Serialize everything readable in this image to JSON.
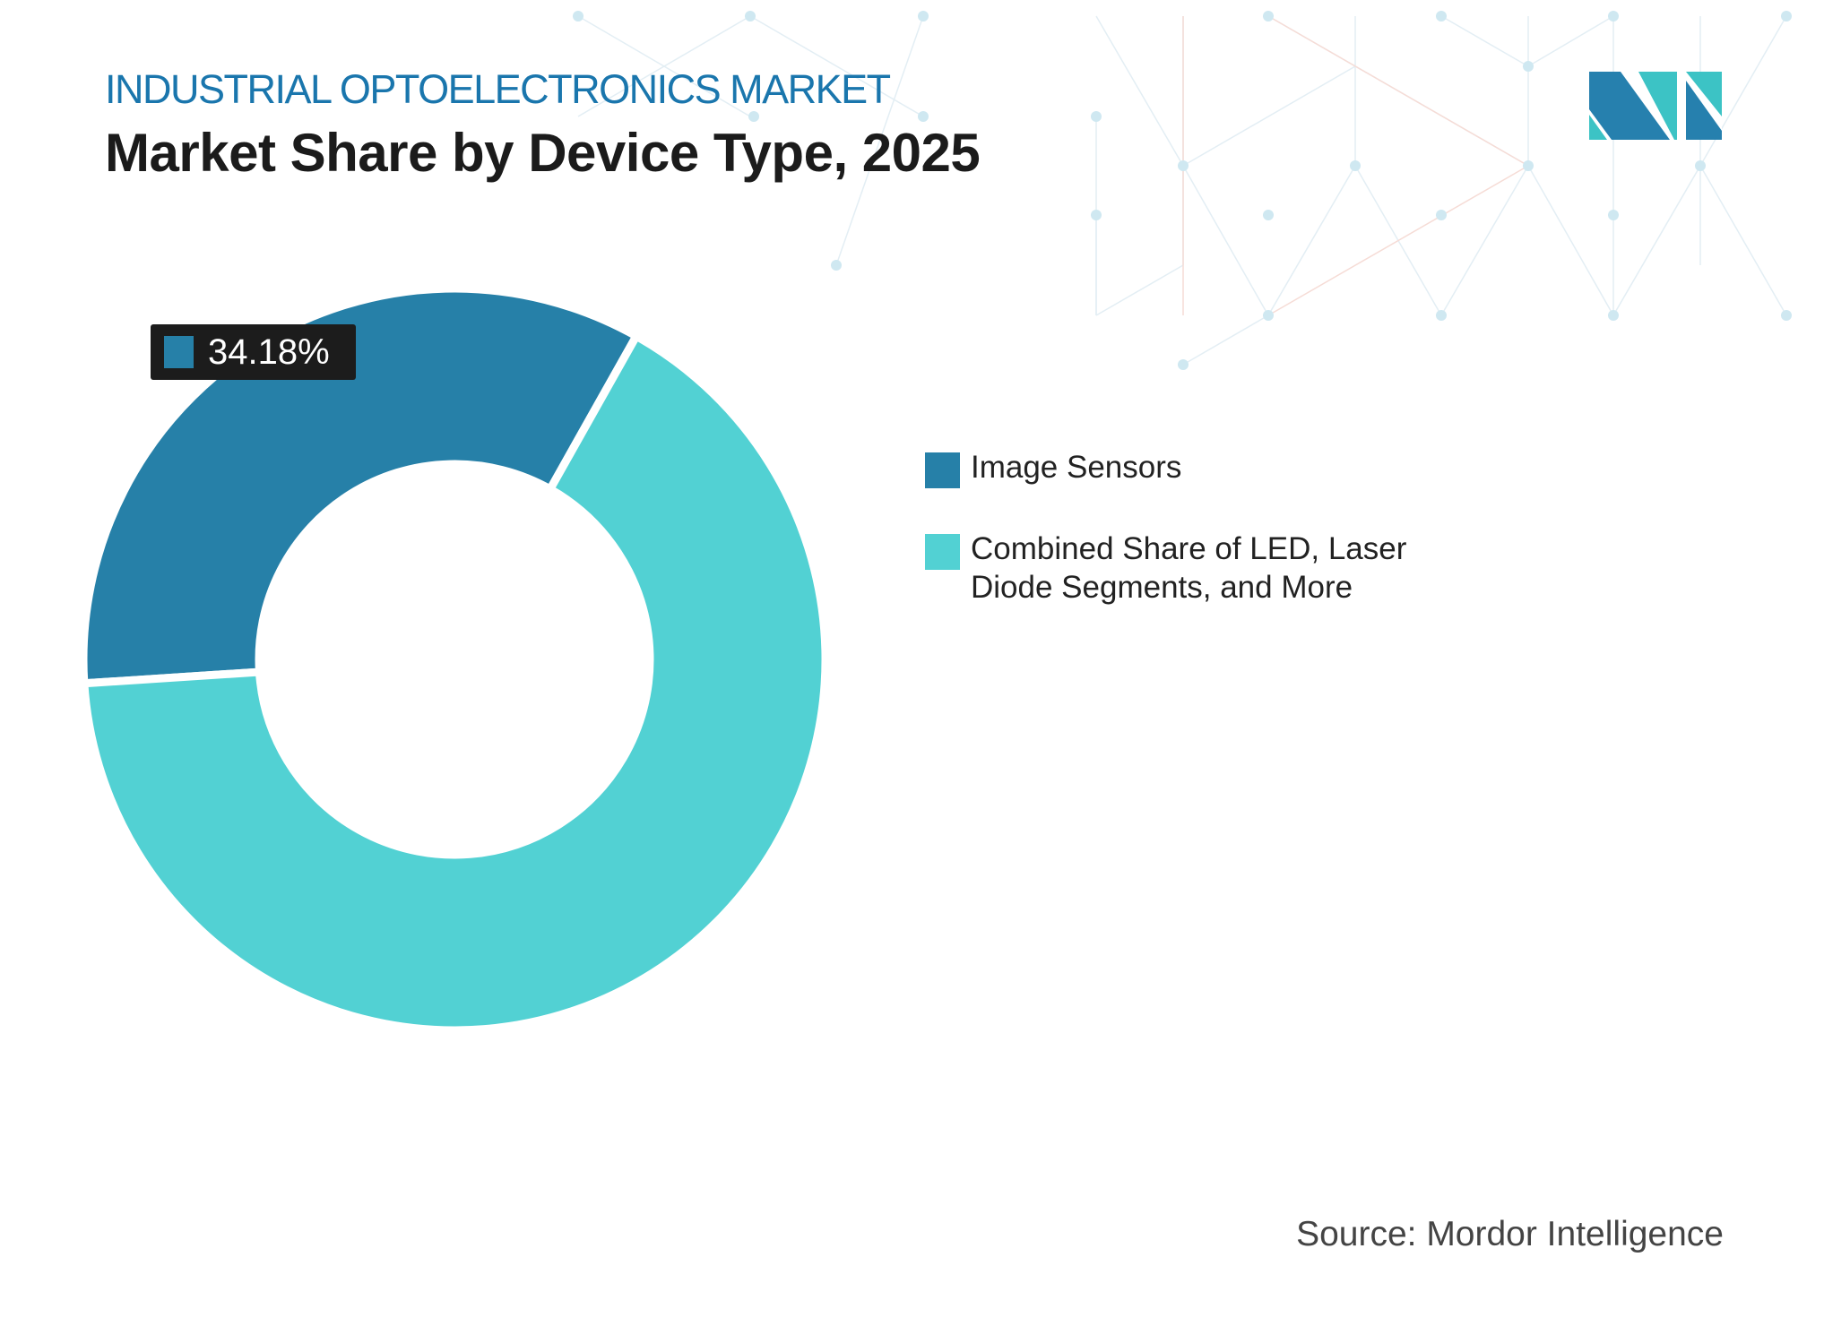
{
  "header": {
    "kicker": "INDUSTRIAL OPTOELECTRONICS MARKET",
    "title": "Market Share by Device Type, 2025"
  },
  "logo": {
    "name": "mordor-intelligence-logo",
    "colors": [
      "#2680ae",
      "#3cc3c5"
    ]
  },
  "chart_data": {
    "type": "pie",
    "variant": "donut",
    "series": [
      {
        "name": "Image Sensors",
        "value": 34.18,
        "color": "#2680a8",
        "label": "34.18%"
      },
      {
        "name": "Combined Share of LED, Laser Diode Segments, and More",
        "value": 65.82,
        "color": "#52d1d3"
      }
    ],
    "legend_position": "right"
  },
  "legend": {
    "items": [
      {
        "label": "Image Sensors",
        "color": "#2680a8"
      },
      {
        "label": "Combined Share of LED, Laser Diode Segments, and More",
        "color": "#52d1d3"
      }
    ]
  },
  "source": "Source: Mordor Intelligence"
}
